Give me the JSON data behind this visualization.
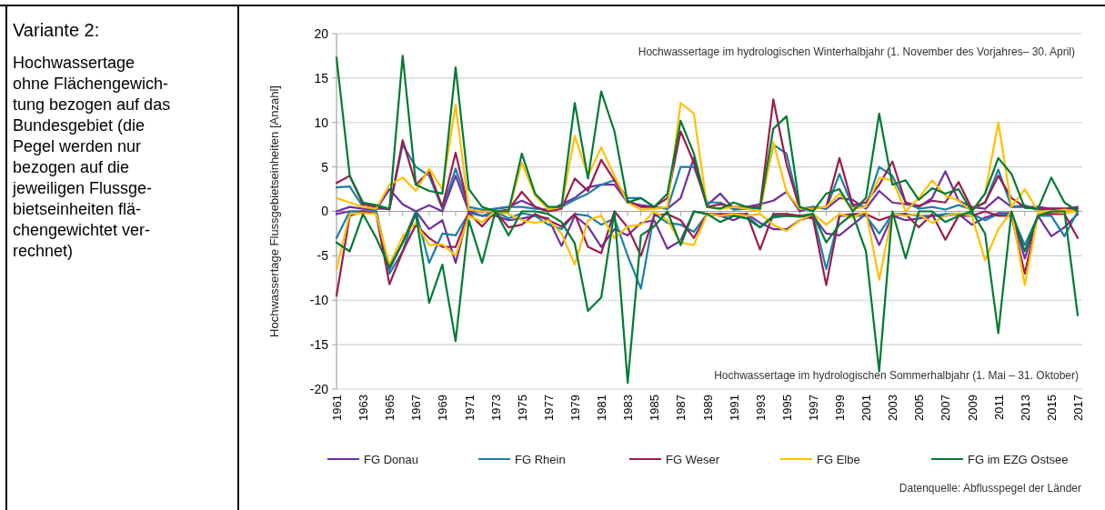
{
  "chart_data": {
    "type": "line",
    "title": "Variante 2:",
    "subtitle": "Hochwassertage\nohne Flächengewich-\ntung bezogen auf das\nBundesgebiet (die\nPegel werden nur\nbezogen auf die\njeweiligen Flussge-\nbietseinheiten flä-\nchengewichtet ver-\nrechnet)",
    "ylabel": "Hochwassertage Flussgebietseinheiten [Anzahl]",
    "annotations": [
      "Hochwassertage im hydrologischen Winterhalbjahr (1. November des Vorjahres– 30. April)",
      "Hochwassertage im hydrologischen Sommerhalbjahr (1. Mai – 31. Oktober)",
      "Datenquelle: Abflusspegel der Länder"
    ],
    "categories": [
      "1961",
      null,
      "1963",
      null,
      "1965",
      null,
      "1967",
      null,
      "1969",
      null,
      "1971",
      null,
      "1973",
      null,
      "1975",
      null,
      "1977",
      null,
      "1979",
      null,
      "1981",
      null,
      "1983",
      null,
      "1985",
      null,
      "1987",
      null,
      "1989",
      null,
      "1991",
      null,
      "1993",
      null,
      "1995",
      null,
      "1997",
      null,
      "1999",
      null,
      "2001",
      null,
      "2003",
      null,
      "2005",
      null,
      "2007",
      null,
      "2009",
      null,
      "2011",
      null,
      "2013",
      null,
      "2015",
      null,
      "2017"
    ],
    "ylim": [
      -20,
      20
    ],
    "yticks": [
      -20,
      -15,
      -10,
      -5,
      0,
      5,
      10,
      15,
      20
    ],
    "grid": "y",
    "legend": "bottom",
    "marker": "none",
    "line_style": "solid",
    "series": [
      {
        "name": "FG Donau",
        "color": "#7030a0",
        "values": [
          0,
          0.5,
          0.3,
          0.2,
          2.5,
          0.8,
          0,
          0.7,
          0,
          4,
          0,
          0,
          0.3,
          0.5,
          1.2,
          0.5,
          0,
          0.8,
          1.5,
          2.7,
          3,
          3,
          1,
          0.7,
          0.5,
          0.3,
          1.5,
          6,
          0.7,
          2,
          0.3,
          0.5,
          0.8,
          1.2,
          2.2,
          0,
          0.5,
          0.3,
          1.5,
          1.3,
          0.3,
          2.3,
          1,
          0.8,
          0.5,
          1.5,
          4.5,
          1.2,
          0.5,
          0.3,
          1.6,
          0.5,
          0.5,
          0.5,
          0.3,
          0.3,
          0.5
        ]
      },
      {
        "color": "#7030a0",
        "values": [
          -0.3,
          0,
          0,
          0,
          -6.5,
          -3.5,
          0,
          -2,
          -1,
          -5.8,
          0,
          -0.5,
          -0.5,
          -1,
          -0.8,
          -0.5,
          -0.8,
          -3.9,
          -0.5,
          -1.7,
          -4,
          -2,
          -2.7,
          -1.3,
          -1,
          -4.2,
          -3.3,
          0,
          -0.3,
          -0.5,
          -1,
          -0.3,
          -1.3,
          -2,
          -2,
          -1,
          -0.5,
          -2.5,
          -2.7,
          -1.5,
          -0.3,
          -3.8,
          -0.5,
          -1,
          -0.8,
          -0.5,
          -0.5,
          -0.3,
          -1.5,
          -0.7,
          -0.2,
          -0.2,
          -5.3,
          -0.5,
          -2.8,
          -1.8,
          -0.3
        ]
      },
      {
        "name": "FG Rhein",
        "color": "#1b7fa8",
        "values": [
          2.7,
          2.8,
          0.5,
          0.3,
          0.3,
          7.5,
          5,
          4,
          0.3,
          4.8,
          0.5,
          0.2,
          0.3,
          0.5,
          0.5,
          0.3,
          0.2,
          0.5,
          1.3,
          2,
          3,
          3.5,
          1.5,
          1.5,
          0.5,
          0.3,
          5,
          5,
          1,
          1,
          0.2,
          0.3,
          0.5,
          7.5,
          6.5,
          0.3,
          0.5,
          0.3,
          4.2,
          0.5,
          0.5,
          5,
          4,
          1,
          0.3,
          0.5,
          0.2,
          0.7,
          0.2,
          1,
          4.7,
          0.5,
          0.7,
          0.1,
          0.3,
          0.3,
          0
        ]
      },
      {
        "color": "#1b7fa8",
        "values": [
          -3,
          0,
          0,
          0,
          -7,
          -4.5,
          0,
          -5.8,
          -2.5,
          -2.7,
          -0.2,
          -0.5,
          0,
          -0.8,
          -0.2,
          -0.5,
          -1.5,
          -2,
          -0.3,
          -0.5,
          -1.5,
          -0.8,
          -5,
          -8.7,
          -0.3,
          -1.3,
          -1.5,
          -2.3,
          -0.3,
          -0.5,
          -0.5,
          -0.5,
          -1.8,
          -0.7,
          -0.5,
          -0.5,
          -0.3,
          -6.5,
          -0.5,
          -0.5,
          -0.5,
          -2.5,
          -0.3,
          -0.3,
          -0.5,
          -0.5,
          -0.3,
          -0.3,
          -0.3,
          -1,
          -0.3,
          -0.3,
          -3.8,
          -0.5,
          -0.5,
          -2.8,
          0
        ]
      },
      {
        "name": "FG Weser",
        "color": "#9b1c4e",
        "values": [
          3.2,
          4,
          0.8,
          0.5,
          0.2,
          8,
          3,
          4.5,
          0.5,
          6.6,
          0.2,
          0,
          0,
          0.2,
          2.2,
          0.5,
          0,
          0.3,
          3.7,
          2.3,
          5.8,
          3.5,
          1.2,
          0.5,
          0.5,
          1.5,
          9,
          5.5,
          0.5,
          0.8,
          0.5,
          0.5,
          0.5,
          12.6,
          5.3,
          0.3,
          0.3,
          0.5,
          6,
          0.7,
          1,
          3,
          5.6,
          1,
          0.6,
          1.2,
          1,
          3.3,
          0.3,
          1,
          4,
          1.5,
          0.5,
          0.3,
          0.3,
          0.3,
          0.3
        ]
      },
      {
        "color": "#9b1c4e",
        "values": [
          -9.5,
          -0.5,
          0,
          -0.3,
          -8.2,
          -4.5,
          -1.5,
          -3,
          -4,
          -4,
          -0.2,
          -1.7,
          0,
          -1.8,
          -1.5,
          -0.3,
          -1,
          -1.7,
          -0.3,
          -4,
          -4.7,
          0,
          -1.8,
          -5,
          -0.5,
          -0.3,
          -1,
          -3,
          -0.3,
          -0.3,
          -0.3,
          -0.3,
          -4.3,
          -0.3,
          -0.3,
          -0.5,
          -0.8,
          -8.3,
          -0.5,
          -0.3,
          -0.3,
          -1,
          -0.5,
          -0.3,
          -1.8,
          -0.3,
          -3.2,
          -0.5,
          -0.5,
          0,
          -0.5,
          -0.5,
          -7,
          -0.3,
          -0.3,
          -0.3,
          -3
        ]
      },
      {
        "name": "FG Elbe",
        "color": "#ffc000",
        "values": [
          1.5,
          1,
          0.5,
          0.3,
          3,
          3.8,
          2.3,
          4.8,
          2.5,
          12,
          0.2,
          0,
          0,
          0,
          5.5,
          1.8,
          0.2,
          0.5,
          8.5,
          4,
          7.2,
          4,
          1,
          0.2,
          0.3,
          0.5,
          12.2,
          11,
          0.5,
          0.3,
          0.5,
          0.3,
          0,
          7.8,
          2.2,
          0.3,
          0.3,
          0.5,
          2,
          0.3,
          0.5,
          3.8,
          3.5,
          0,
          1.5,
          3.5,
          1.8,
          1.2,
          0,
          2,
          10,
          0.5,
          2.5,
          0,
          0,
          0.2,
          0
        ]
      },
      {
        "color": "#ffc000",
        "values": [
          -6.5,
          -0.3,
          -0.2,
          -0.3,
          -6,
          -2.8,
          -1.3,
          -3.8,
          -3.7,
          -5,
          -0.5,
          -1.2,
          0,
          -0.3,
          -1,
          -1.3,
          -1,
          -2.5,
          -6,
          -1,
          -0.5,
          -3,
          -1.7,
          -1.5,
          0,
          -1,
          -3.5,
          -3.8,
          -0.3,
          -0.5,
          -0.3,
          -0.5,
          -0.3,
          -1.5,
          -2.2,
          -1,
          -0.3,
          -1.5,
          -0.3,
          -0.7,
          0,
          -7.7,
          -0.3,
          -0.5,
          -0.3,
          -1.3,
          -0.5,
          -0.2,
          -0.5,
          -5.5,
          -2,
          0,
          -8.3,
          -0.3,
          0,
          -0.2,
          0
        ]
      },
      {
        "name": "FG im EZG Ostsee",
        "color": "#007a33",
        "values": [
          17.3,
          4,
          1,
          0.7,
          0.3,
          17.5,
          3,
          2.3,
          2,
          16.2,
          2.5,
          0.5,
          0,
          0,
          6.5,
          2,
          0.5,
          0.5,
          12.2,
          3.7,
          13.5,
          9,
          1,
          1.5,
          0.5,
          2,
          10.2,
          6.5,
          0.5,
          0.3,
          1,
          0.5,
          0.3,
          9.3,
          10.7,
          0.5,
          0,
          2,
          2.5,
          0,
          1.5,
          11,
          3,
          3.5,
          1.3,
          2.6,
          2,
          2.5,
          0,
          2,
          6,
          4.2,
          0.4,
          0.3,
          3.8,
          1,
          0
        ]
      },
      {
        "color": "#007a33",
        "values": [
          -3.5,
          -4.5,
          -0.3,
          -3,
          -6.3,
          -3.5,
          -0.3,
          -10.3,
          -6,
          -14.6,
          -1,
          -5.8,
          0,
          -2.7,
          0,
          0,
          -0.3,
          -1.2,
          -3.6,
          -11.2,
          -9.7,
          0,
          -19.3,
          -2.7,
          -1.7,
          0,
          -3.8,
          0,
          -0.3,
          -1.2,
          -0.5,
          -0.8,
          -1.8,
          -0.5,
          -0.5,
          -0.6,
          -0.3,
          -3.5,
          -1.5,
          -0.3,
          -4.5,
          -18,
          0,
          -5.3,
          0,
          0,
          -1.2,
          -0.5,
          0,
          -2.5,
          -13.7,
          0,
          -4.5,
          -0.5,
          0,
          0,
          -11.7
        ]
      }
    ]
  }
}
